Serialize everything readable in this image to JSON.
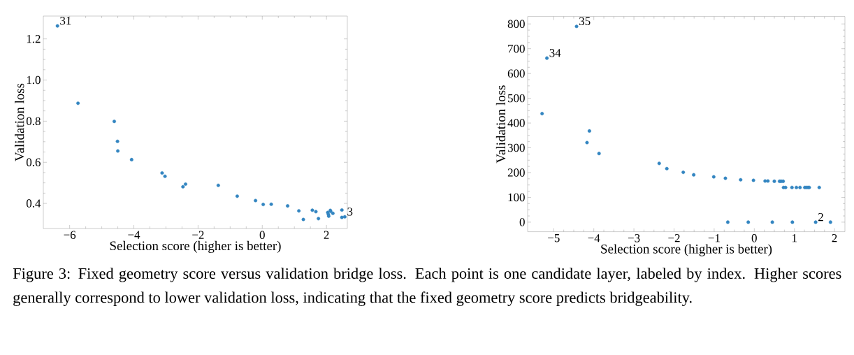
{
  "chart_data": [
    {
      "type": "scatter",
      "xlabel": "Selection score (higher is better)",
      "ylabel": "Validation loss",
      "marker": "circle",
      "color": "#3385c1",
      "xlim": [
        -6.82,
        2.65
      ],
      "ylim": [
        0.278,
        1.311
      ],
      "xticks": [
        {
          "value": -6,
          "label": "−6"
        },
        {
          "value": -4,
          "label": "−4"
        },
        {
          "value": -2,
          "label": "−2"
        },
        0,
        2
      ],
      "yticks": [
        0.4,
        0.6,
        0.8,
        {
          "value": 1.0,
          "label": "1.0"
        },
        1.2
      ],
      "x": [
        -6.38,
        -5.74,
        -4.61,
        -4.51,
        -4.5,
        -4.07,
        -3.12,
        -3.03,
        -2.47,
        -2.39,
        -1.37,
        -0.78,
        -0.21,
        0.03,
        0.28,
        0.79,
        1.14,
        1.28,
        1.56,
        1.67,
        1.75,
        2.04,
        2.06,
        2.07,
        2.12,
        2.13,
        2.2,
        2.48,
        2.48,
        2.57
      ],
      "values": [
        1.263,
        0.887,
        0.799,
        0.702,
        0.655,
        0.613,
        0.548,
        0.532,
        0.481,
        0.494,
        0.488,
        0.435,
        0.414,
        0.395,
        0.396,
        0.388,
        0.364,
        0.322,
        0.367,
        0.36,
        0.326,
        0.356,
        0.347,
        0.338,
        0.366,
        0.361,
        0.352,
        0.368,
        0.332,
        0.335
      ],
      "annotations": [
        "Figure 3: Fixed geometry score versus validation bridge loss. Each point is one candidate layer, labeled by index. Higher scores generally correspond to lower validation loss, indicating that the fixed geometry score predicts bridgeability.",
        {
          "text": "31",
          "x": -6.38,
          "y": 1.263
        },
        {
          "text": "3",
          "x": 2.57,
          "y": 0.335
        }
      ]
    },
    {
      "type": "scatter",
      "xlabel": "Selection score (higher is better)",
      "ylabel": "Validation loss",
      "marker": "circle",
      "color": "#3385c1",
      "xlim": [
        -5.65,
        2.26
      ],
      "ylim": [
        -38.7,
        830
      ],
      "xticks": [
        {
          "value": -5,
          "label": "−5"
        },
        {
          "value": -4,
          "label": "−4"
        },
        {
          "value": -3,
          "label": "−3"
        },
        {
          "value": -2,
          "label": "−2"
        },
        {
          "value": -1,
          "label": "−1"
        },
        0,
        1,
        2
      ],
      "yticks": [
        0,
        100,
        200,
        300,
        400,
        500,
        600,
        700,
        800
      ],
      "x": [
        -4.43,
        -5.17,
        -5.29,
        -4.11,
        -4.17,
        -3.87,
        -2.37,
        -2.18,
        -1.77,
        -1.51,
        -1.01,
        -0.72,
        -0.34,
        -0.02,
        0.27,
        0.34,
        0.5,
        0.63,
        0.67,
        0.72,
        0.73,
        0.78,
        0.94,
        1.05,
        1.14,
        1.26,
        1.3,
        1.34,
        1.37,
        1.62,
        -0.66,
        -0.15,
        0.45,
        0.95,
        1.53,
        1.9
      ],
      "values": [
        790,
        662,
        438,
        368,
        321,
        277,
        237,
        216,
        201,
        191,
        183,
        177,
        171,
        169,
        166,
        166,
        165,
        165,
        165,
        165,
        140,
        140,
        140,
        140,
        140,
        140,
        140,
        140,
        140,
        140,
        0,
        0,
        0,
        0,
        0,
        0
      ],
      "annotations": [
        {
          "text": "35",
          "x": -4.43,
          "y": 790
        },
        {
          "text": "34",
          "x": -5.17,
          "y": 662
        },
        {
          "text": "2",
          "x": 1.53,
          "y": 0
        }
      ]
    }
  ]
}
